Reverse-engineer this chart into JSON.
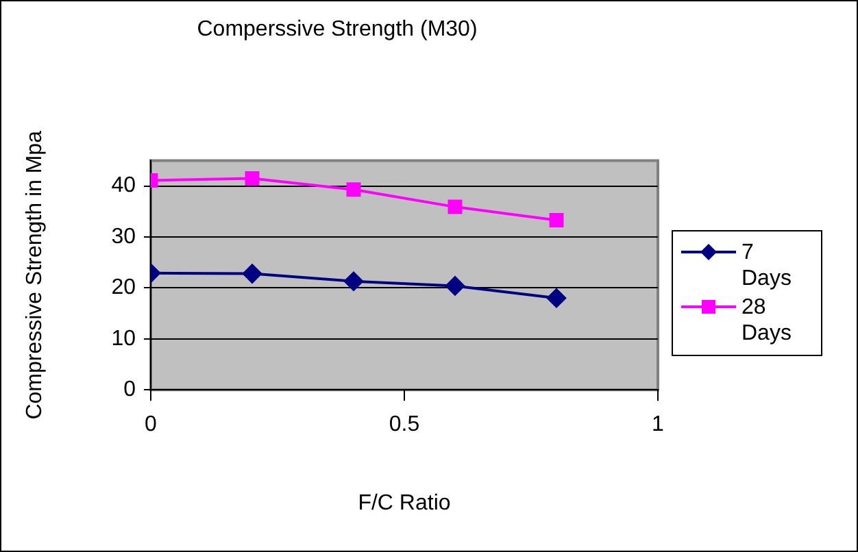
{
  "chart_data": {
    "type": "line",
    "title": "Comperssive Strength (M30)",
    "xlabel": "F/C Ratio",
    "ylabel": "Compressive Strength in Mpa",
    "x": [
      0,
      0.2,
      0.4,
      0.6,
      0.8
    ],
    "series": [
      {
        "name": "7 Days",
        "color": "#000080",
        "marker": "diamond",
        "values": [
          22.9,
          22.8,
          21.3,
          20.4,
          18.0
        ]
      },
      {
        "name": "28 Days",
        "color": "#ff00ff",
        "marker": "square",
        "values": [
          41.1,
          41.5,
          39.3,
          35.9,
          33.3
        ]
      }
    ],
    "xlim": [
      0,
      1
    ],
    "xticks": [
      0,
      0.5,
      1
    ],
    "ylim": [
      0,
      45
    ],
    "yticks": [
      0,
      10,
      20,
      30,
      40
    ],
    "grid": "y",
    "legend": "right"
  }
}
